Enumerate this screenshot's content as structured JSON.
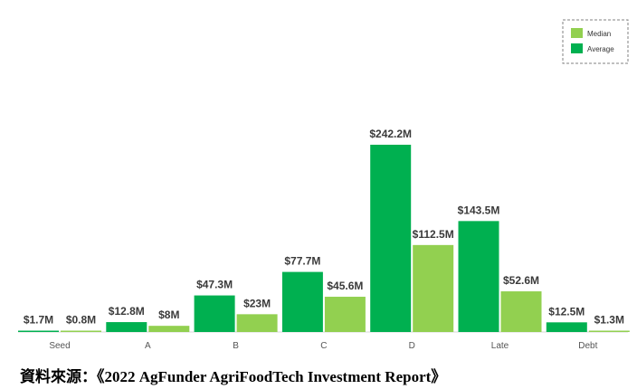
{
  "chart_data": {
    "type": "bar",
    "categories": [
      "Seed",
      "A",
      "B",
      "C",
      "D",
      "Late",
      "Debt"
    ],
    "series": [
      {
        "name": "Average",
        "color": "#00b050",
        "values": [
          1.7,
          12.8,
          47.3,
          77.7,
          242.2,
          143.5,
          12.5
        ],
        "labels": [
          "$1.7M",
          "$12.8M",
          "$47.3M",
          "$77.7M",
          "$242.2M",
          "$143.5M",
          "$12.5M"
        ]
      },
      {
        "name": "Median",
        "color": "#92d050",
        "values": [
          0.8,
          8,
          23,
          45.6,
          112.5,
          52.6,
          1.3
        ],
        "labels": [
          "$0.8M",
          "$8M",
          "$23M",
          "$45.6M",
          "$112.5M",
          "$52.6M",
          "$1.3M"
        ]
      }
    ],
    "legend_order": [
      "Median",
      "Average"
    ],
    "legend_position": "top-right",
    "title": "",
    "xlabel": "",
    "ylabel": "",
    "ylim": [
      0,
      250
    ],
    "grid": false
  },
  "source_text": "資料來源：《2022 AgFunder AgriFoodTech Investment Report》"
}
